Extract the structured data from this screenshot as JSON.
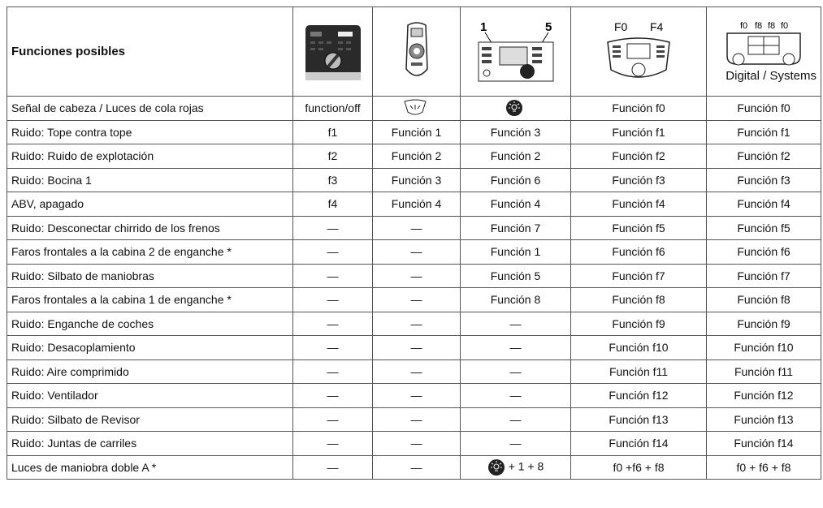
{
  "header": {
    "title": "Funciones posibles",
    "device_3_labels": [
      "1",
      "5"
    ],
    "device_4_labels": [
      "F0",
      "F4"
    ],
    "device_5_labels": [
      "f0",
      "f8",
      "f8",
      "f0"
    ],
    "device_5_caption": "Digital / Systems"
  },
  "rows": [
    [
      "Señal de cabeza / Luces de cola rojas",
      "function/off",
      null,
      null,
      "Función f0",
      "Función f0"
    ],
    [
      "Ruido: Tope contra tope",
      "f1",
      "Función 1",
      "Función 3",
      "Función f1",
      "Función f1"
    ],
    [
      "Ruido: Ruido de explotación",
      "f2",
      "Función 2",
      "Función 2",
      "Función f2",
      "Función f2"
    ],
    [
      "Ruido: Bocina 1",
      "f3",
      "Función 3",
      "Función 6",
      "Función f3",
      "Función f3"
    ],
    [
      "ABV, apagado",
      "f4",
      "Función 4",
      "Función 4",
      "Función f4",
      "Función f4"
    ],
    [
      "Ruido: Desconectar chirrido de los frenos",
      "—",
      "—",
      "Función 7",
      "Función f5",
      "Función f5"
    ],
    [
      "Faros frontales a la cabina 2 de enganche *",
      "—",
      "—",
      "Función 1",
      "Función f6",
      "Función f6"
    ],
    [
      "Ruido: Silbato de maniobras",
      "—",
      "—",
      "Función 5",
      "Función f7",
      "Función f7"
    ],
    [
      "Faros frontales a la cabina 1 de enganche *",
      "—",
      "—",
      "Función 8",
      "Función f8",
      "Función f8"
    ],
    [
      "Ruido: Enganche de coches",
      "—",
      "—",
      "—",
      "Función f9",
      "Función f9"
    ],
    [
      "Ruido: Desacoplamiento",
      "—",
      "—",
      "—",
      "Función f10",
      "Función f10"
    ],
    [
      "Ruido: Aire comprimido",
      "—",
      "—",
      "—",
      "Función f11",
      "Función f11"
    ],
    [
      "Ruido: Ventilador",
      "—",
      "—",
      "—",
      "Función f12",
      "Función f12"
    ],
    [
      "Ruido: Silbato de Revisor",
      "—",
      "—",
      "—",
      "Función f13",
      "Función f13"
    ],
    [
      "Ruido: Juntas de carriles",
      "—",
      "—",
      "—",
      "Función f14",
      "Función f14"
    ],
    [
      "Luces de maniobra doble A *",
      "—",
      "—",
      "+ 1 + 8",
      "f0 +f6 + f8",
      "f0 + f6 + f8"
    ]
  ]
}
